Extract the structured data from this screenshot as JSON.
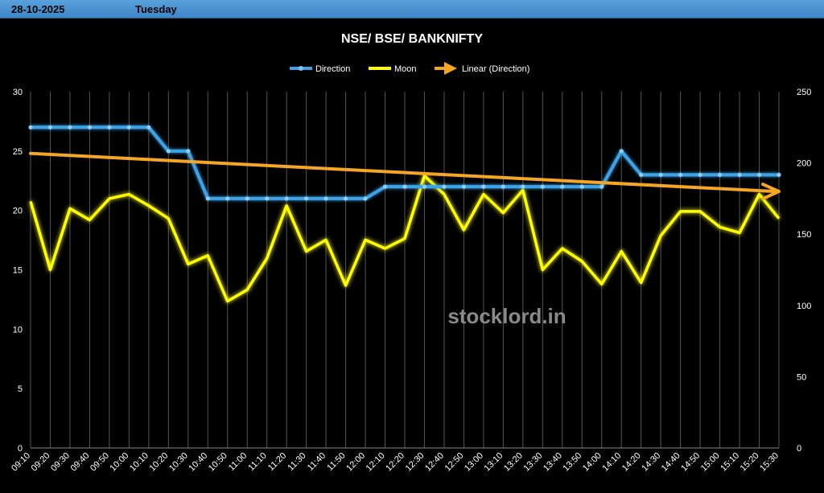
{
  "header": {
    "date": "28-10-2025",
    "day": "Tuesday"
  },
  "colors": {
    "direction": "#3da2e6",
    "moon": "#ffff00",
    "trend": "#f5a623",
    "grid": "#555555",
    "text": "#ffffff"
  },
  "chart_data": {
    "type": "line",
    "title": "NSE/ BSE/ BANKNIFTY",
    "categories": [
      "09:10",
      "09:20",
      "09:30",
      "09:40",
      "09:50",
      "10:00",
      "10:10",
      "10:20",
      "10:30",
      "10:40",
      "10:50",
      "11:00",
      "11:10",
      "11:20",
      "11:30",
      "11:40",
      "11:50",
      "12:00",
      "12:10",
      "12:20",
      "12:30",
      "12:40",
      "12:50",
      "13:00",
      "13:10",
      "13:20",
      "13:30",
      "13:40",
      "13:50",
      "14:00",
      "14:10",
      "14:20",
      "14:30",
      "14:40",
      "14:50",
      "15:00",
      "15:10",
      "15:20",
      "15:30"
    ],
    "left_axis": {
      "min": 0,
      "max": 30,
      "ticks": [
        0,
        5,
        10,
        15,
        20,
        25,
        30
      ]
    },
    "right_axis": {
      "min": 0,
      "max": 250,
      "ticks": [
        0,
        50,
        100,
        150,
        200,
        250
      ]
    },
    "legend_position": "top",
    "grid": true,
    "series": [
      {
        "name": "Direction",
        "axis": "left",
        "color": "#3da2e6",
        "values": [
          27,
          27,
          27,
          27,
          27,
          27,
          27,
          25,
          25,
          21,
          21,
          21,
          21,
          21,
          21,
          21,
          21,
          21,
          22,
          22,
          22,
          22,
          22,
          22,
          22,
          22,
          22,
          22,
          22,
          22,
          25,
          23,
          23,
          23,
          23,
          23,
          23,
          23,
          23
        ]
      },
      {
        "name": "Moon",
        "axis": "right",
        "color": "#ffff00",
        "values": [
          173,
          125,
          168,
          160,
          175,
          178,
          170,
          161,
          129,
          135,
          103,
          111,
          133,
          170,
          138,
          146,
          114,
          146,
          140,
          147,
          191,
          178,
          153,
          178,
          165,
          181,
          125,
          140,
          131,
          115,
          138,
          116,
          149,
          166,
          166,
          155,
          151,
          178,
          161
        ]
      },
      {
        "name": "Linear (Direction)",
        "axis": "left",
        "color": "#f5a623",
        "type": "trendline",
        "start": 24.8,
        "end": 21.6
      }
    ]
  },
  "watermark": "stocklord.in"
}
